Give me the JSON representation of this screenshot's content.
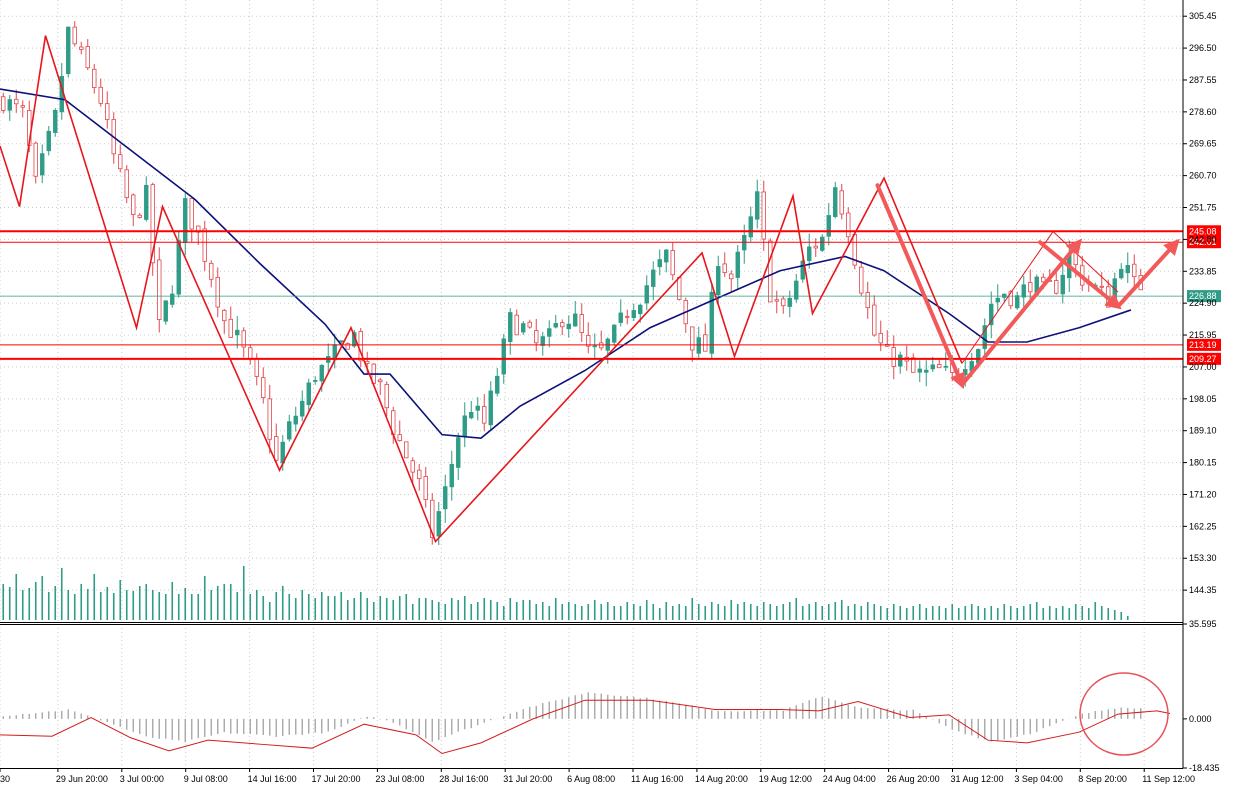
{
  "colors": {
    "bull": "#2e9c86",
    "bear": "#e0474c",
    "ma": "#0d127a",
    "zigzag": "#e8161c",
    "level": "#ff0000",
    "current": "#2e9c86",
    "arrow": "#f25a5a",
    "grid": "#c8ccd0",
    "osc_bar": "#a8a8a8",
    "osc_line": "#d41c1c",
    "circle": "#e8535a",
    "volume": "#2e9c86"
  },
  "chart_data": [
    {
      "type": "candlestick",
      "title": "",
      "ylim": [
        135.4,
        310
      ],
      "y_ticks": [
        "305.45",
        "296.50",
        "287.55",
        "278.60",
        "269.65",
        "260.70",
        "251.75",
        "242.80",
        "233.85",
        "224.90",
        "215.95",
        "207.00",
        "198.05",
        "189.10",
        "180.15",
        "171.20",
        "162.25",
        "153.30",
        "144.35"
      ],
      "x_ticks": [
        "30",
        "29 Jun 20:00",
        "3 Jul 00:00",
        "9 Jul 08:00",
        "14 Jul 16:00",
        "17 Jul 20:00",
        "23 Jul 08:00",
        "28 Jul 16:00",
        "31 Jul 20:00",
        "6 Aug 08:00",
        "11 Aug 16:00",
        "14 Aug 20:00",
        "19 Aug 12:00",
        "24 Aug 04:00",
        "26 Aug 20:00",
        "31 Aug 12:00",
        "3 Sep 04:00",
        "8 Sep 20:00",
        "11 Sep 12:00"
      ],
      "grid": true,
      "price_close_path": [
        [
          0,
          282
        ],
        [
          3,
          278
        ],
        [
          5,
          258
        ],
        [
          8,
          277
        ],
        [
          10,
          301
        ],
        [
          13,
          290
        ],
        [
          15,
          282
        ],
        [
          17,
          266
        ],
        [
          20,
          248
        ],
        [
          22,
          255
        ],
        [
          24,
          218
        ],
        [
          26,
          230
        ],
        [
          28,
          252
        ],
        [
          30,
          244
        ],
        [
          32,
          233
        ],
        [
          34,
          220
        ],
        [
          36,
          215
        ],
        [
          38,
          207
        ],
        [
          40,
          197
        ],
        [
          42,
          180
        ],
        [
          44,
          190
        ],
        [
          46,
          197
        ],
        [
          48,
          205
        ],
        [
          50,
          208
        ],
        [
          52,
          213
        ],
        [
          54,
          216
        ],
        [
          56,
          205
        ],
        [
          58,
          201
        ],
        [
          60,
          190
        ],
        [
          62,
          182
        ],
        [
          64,
          174
        ],
        [
          66,
          160
        ],
        [
          68,
          172
        ],
        [
          70,
          188
        ],
        [
          72,
          196
        ],
        [
          74,
          191
        ],
        [
          76,
          205
        ],
        [
          78,
          220
        ],
        [
          80,
          218
        ],
        [
          82,
          213
        ],
        [
          84,
          215
        ],
        [
          86,
          221
        ],
        [
          88,
          220
        ],
        [
          90,
          211
        ],
        [
          92,
          211
        ],
        [
          94,
          216
        ],
        [
          96,
          223
        ],
        [
          98,
          227
        ],
        [
          100,
          233
        ],
        [
          102,
          238
        ],
        [
          104,
          226
        ],
        [
          106,
          214
        ],
        [
          108,
          212
        ],
        [
          110,
          238
        ],
        [
          112,
          232
        ],
        [
          114,
          242
        ],
        [
          116,
          254
        ],
        [
          118,
          228
        ],
        [
          120,
          222
        ],
        [
          122,
          231
        ],
        [
          124,
          240
        ],
        [
          126,
          243
        ],
        [
          128,
          258
        ],
        [
          130,
          246
        ],
        [
          132,
          230
        ],
        [
          134,
          216
        ],
        [
          136,
          210
        ],
        [
          138,
          209
        ],
        [
          140,
          205
        ],
        [
          142,
          205
        ],
        [
          144,
          206
        ],
        [
          146,
          204
        ],
        [
          148,
          209
        ],
        [
          150,
          213
        ],
        [
          152,
          225
        ],
        [
          154,
          228
        ],
        [
          156,
          226
        ],
        [
          158,
          231
        ],
        [
          160,
          228
        ],
        [
          162,
          230
        ],
        [
          164,
          238
        ],
        [
          166,
          232
        ],
        [
          168,
          229
        ],
        [
          170,
          226
        ],
        [
          172,
          237
        ],
        [
          174,
          230
        ]
      ],
      "moving_average": [
        [
          0,
          285
        ],
        [
          10,
          282
        ],
        [
          20,
          268
        ],
        [
          30,
          254
        ],
        [
          40,
          236
        ],
        [
          50,
          219
        ],
        [
          56,
          205
        ],
        [
          60,
          205
        ],
        [
          68,
          188
        ],
        [
          74,
          187
        ],
        [
          80,
          196
        ],
        [
          90,
          206
        ],
        [
          100,
          218
        ],
        [
          110,
          226
        ],
        [
          120,
          234
        ],
        [
          130,
          238
        ],
        [
          136,
          234
        ],
        [
          146,
          222
        ],
        [
          152,
          214
        ],
        [
          158,
          214
        ],
        [
          166,
          218
        ],
        [
          174,
          223
        ]
      ],
      "zigzag": [
        [
          0,
          269
        ],
        [
          3,
          252
        ],
        [
          7,
          300
        ],
        [
          21,
          218
        ],
        [
          25,
          252
        ],
        [
          43,
          178
        ],
        [
          54,
          218
        ],
        [
          67,
          158
        ],
        [
          108,
          239
        ],
        [
          113,
          210
        ],
        [
          122,
          255
        ],
        [
          125,
          222
        ],
        [
          136,
          260
        ],
        [
          148,
          208
        ]
      ],
      "zigzag_tail": [
        [
          148,
          208
        ],
        [
          162,
          245
        ],
        [
          172,
          228
        ]
      ],
      "horizontal_levels": [
        {
          "value": 245.08,
          "label": "245.08",
          "width": 2
        },
        {
          "value": 242.01,
          "label": "242.01",
          "width": 1
        },
        {
          "value": 213.19,
          "label": "213.19",
          "width": 1
        },
        {
          "value": 209.27,
          "label": "209.27",
          "width": 2
        }
      ],
      "current_price": {
        "value": 226.88,
        "label": "226.88"
      },
      "projection_arrows": [
        [
          [
            135,
            258
          ],
          [
            148,
            202
          ]
        ],
        [
          [
            148,
            202
          ],
          [
            166,
            242
          ]
        ],
        [
          [
            160,
            242
          ],
          [
            172,
            224
          ]
        ],
        [
          [
            172,
            224
          ],
          [
            181,
            242
          ]
        ]
      ],
      "volume": {
        "ylim": [
          0,
          80
        ],
        "values": [
          36,
          33,
          46,
          30,
          32,
          38,
          44,
          28,
          34,
          52,
          30,
          26,
          36,
          31,
          46,
          28,
          33,
          27,
          40,
          30,
          29,
          34,
          36,
          30,
          28,
          26,
          38,
          26,
          32,
          26,
          26,
          44,
          30,
          34,
          36,
          36,
          28,
          54,
          26,
          30,
          24,
          18,
          28,
          34,
          26,
          22,
          30,
          26,
          22,
          28,
          24,
          24,
          28,
          20,
          22,
          28,
          22,
          18,
          24,
          22,
          20,
          24,
          26,
          16,
          22,
          22,
          20,
          18,
          16,
          22,
          20,
          24,
          16,
          18,
          22,
          20,
          18,
          14,
          22,
          18,
          20,
          20,
          16,
          18,
          14,
          22,
          16,
          18,
          16,
          14,
          16,
          20,
          16,
          18,
          14,
          14,
          18,
          16,
          14,
          20,
          16,
          12,
          18,
          14,
          16,
          14,
          22,
          16,
          14,
          18,
          16,
          14,
          20,
          16,
          18,
          16,
          14,
          18,
          16,
          14,
          16,
          18,
          22,
          14,
          16,
          18,
          14,
          16,
          18,
          20,
          14,
          16,
          14,
          18,
          16,
          14,
          12,
          16,
          14,
          12,
          14,
          16,
          12,
          14,
          14,
          12,
          16,
          12,
          14,
          16,
          14,
          12,
          14,
          12,
          16,
          14,
          12,
          14,
          16,
          18,
          12,
          14,
          12,
          14,
          12,
          16,
          14,
          12,
          18,
          14,
          12,
          10,
          8,
          4
        ]
      }
    },
    {
      "type": "bar+line",
      "title": "",
      "ylim": [
        -18.435,
        35.595
      ],
      "y_ticks": [
        "35.595",
        "0.000",
        "-18.435"
      ],
      "bars": [
        [
          0,
          1.2
        ],
        [
          10,
          3.4
        ],
        [
          16,
          -1.2
        ],
        [
          22,
          -6.8
        ],
        [
          28,
          -8.6
        ],
        [
          34,
          -5.2
        ],
        [
          42,
          -6.5
        ],
        [
          50,
          -5.0
        ],
        [
          56,
          1.0
        ],
        [
          60,
          -1.2
        ],
        [
          66,
          -8.5
        ],
        [
          72,
          -3.2
        ],
        [
          80,
          3.8
        ],
        [
          90,
          10.0
        ],
        [
          100,
          7.5
        ],
        [
          110,
          3.0
        ],
        [
          120,
          3.2
        ],
        [
          126,
          8.5
        ],
        [
          132,
          4.0
        ],
        [
          140,
          3.2
        ],
        [
          146,
          -4.0
        ],
        [
          152,
          -8.5
        ],
        [
          158,
          -5.5
        ],
        [
          166,
          1.8
        ],
        [
          172,
          4.5
        ],
        [
          178,
          3.5
        ]
      ],
      "signal": [
        [
          0,
          -6
        ],
        [
          8,
          -6.5
        ],
        [
          14,
          0.5
        ],
        [
          20,
          -7
        ],
        [
          26,
          -12
        ],
        [
          32,
          -8
        ],
        [
          40,
          -9.5
        ],
        [
          48,
          -11
        ],
        [
          56,
          -2
        ],
        [
          64,
          -6
        ],
        [
          68,
          -13
        ],
        [
          74,
          -9
        ],
        [
          82,
          0
        ],
        [
          90,
          7
        ],
        [
          100,
          7
        ],
        [
          110,
          3.5
        ],
        [
          120,
          3.5
        ],
        [
          126,
          3
        ],
        [
          132,
          6.5
        ],
        [
          140,
          0.5
        ],
        [
          146,
          1.5
        ],
        [
          152,
          -8
        ],
        [
          158,
          -9
        ],
        [
          166,
          -5
        ],
        [
          172,
          1.8
        ],
        [
          178,
          3.0
        ],
        [
          180,
          2.0
        ]
      ]
    }
  ]
}
